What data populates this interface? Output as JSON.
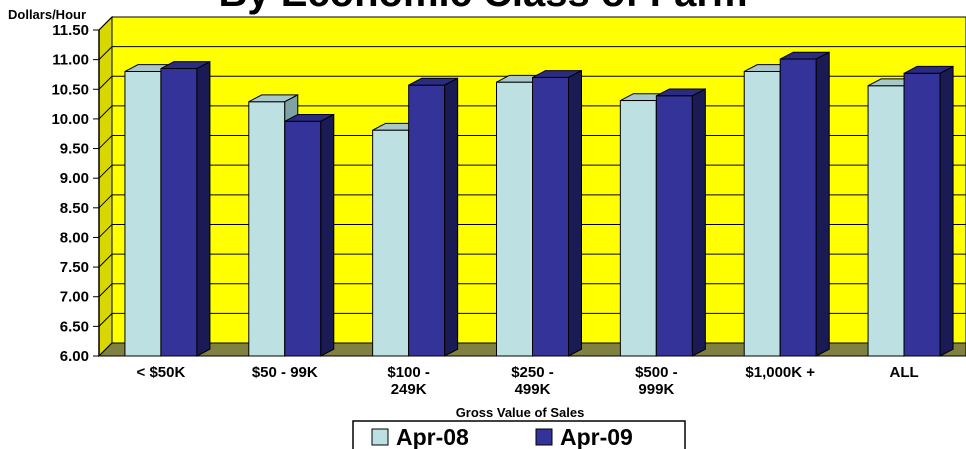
{
  "chart_data": {
    "type": "bar",
    "title": "By Economic Class of Farm",
    "ylabel": "Dollars/Hour",
    "xlabel": "Gross Value of Sales",
    "ylim": [
      6.0,
      11.5
    ],
    "yticks": [
      "6.00",
      "6.50",
      "7.00",
      "7.50",
      "8.00",
      "8.50",
      "9.00",
      "9.50",
      "10.00",
      "10.50",
      "11.00",
      "11.50"
    ],
    "categories": [
      [
        "< $50K"
      ],
      [
        "$50 - 99K"
      ],
      [
        "$100 -",
        "249K"
      ],
      [
        "$250 -",
        "499K"
      ],
      [
        "$500 -",
        "999K"
      ],
      [
        "$1,000K +"
      ],
      [
        "ALL"
      ]
    ],
    "series": [
      {
        "name": "Apr-08",
        "color": "#bde0e2",
        "values": [
          10.8,
          10.29,
          9.81,
          10.62,
          10.31,
          10.8,
          10.56
        ]
      },
      {
        "name": "Apr-09",
        "color": "#333399",
        "values": [
          10.85,
          9.96,
          10.57,
          10.7,
          10.39,
          11.01,
          10.77
        ]
      }
    ],
    "plot_background": "#ffff00",
    "floor_color": "#808040",
    "grid": true,
    "legend_position": "bottom"
  }
}
